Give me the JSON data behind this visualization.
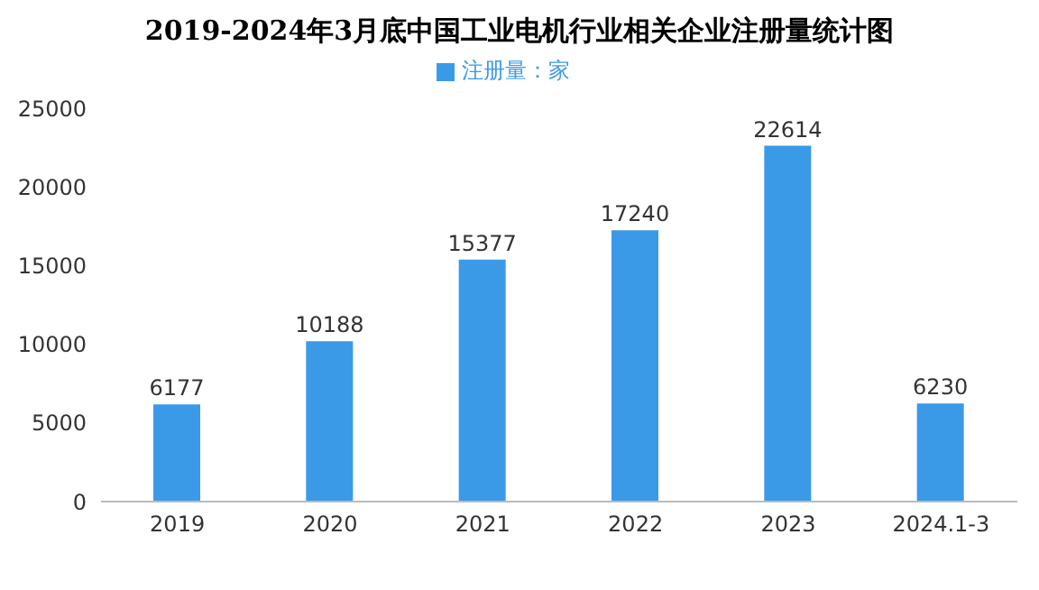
{
  "chart_data": {
    "type": "bar",
    "title": "2019-2024年3月底中国工业电机行业相关企业注册量统计图",
    "categories": [
      "2019",
      "2020",
      "2021",
      "2022",
      "2023",
      "2024.1-3"
    ],
    "series": [
      {
        "name": "注册量：家",
        "color": "#3b9ae8",
        "values": [
          6177,
          10188,
          15377,
          17240,
          22614,
          6230
        ]
      }
    ],
    "ylim": [
      0,
      25000
    ],
    "yticks": [
      0,
      5000,
      10000,
      15000,
      20000,
      25000
    ],
    "grid": false,
    "legend": "top",
    "data_labels": true
  }
}
